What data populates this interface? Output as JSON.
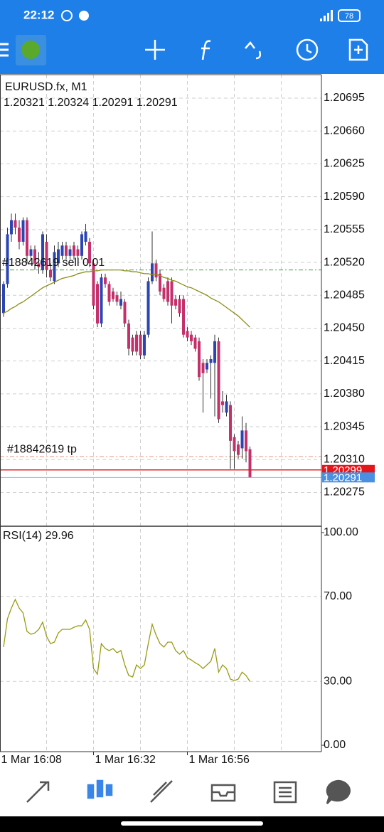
{
  "ui": {
    "status_time": "22:12",
    "battery": "78"
  },
  "chart_data": [
    {
      "type": "candlestick",
      "title": "EURUSD.fx, M1",
      "subtitle": "1.20321 1.20324 1.20291 1.20291",
      "open": [
        1.20466,
        1.20497,
        1.2055,
        1.20565,
        1.20557,
        1.20542,
        1.20565,
        1.20527,
        1.20534,
        1.20519,
        1.20512,
        1.20542,
        1.20512,
        1.205,
        1.20519,
        1.20527,
        1.20538,
        1.20527,
        1.20538,
        1.20534,
        1.20527,
        1.20542,
        1.20542,
        1.20519,
        1.20497,
        1.20455,
        1.20504,
        1.20497,
        1.20489,
        1.20485,
        1.20474,
        1.20478,
        1.20455,
        1.2044,
        1.20443,
        1.20443,
        1.20421,
        1.20443,
        1.205,
        1.20519,
        1.20508,
        1.20493,
        1.205,
        1.205,
        1.20481,
        1.20481,
        1.20481,
        1.20447,
        1.20443,
        1.2044,
        1.20436,
        1.20413,
        1.20406,
        1.20413,
        1.20413,
        1.20436,
        1.20372,
        1.2036,
        1.20368,
        1.20334,
        1.20326,
        1.20322,
        1.20341,
        1.20321
      ],
      "high": [
        1.205,
        1.20557,
        1.20572,
        1.20572,
        1.20565,
        1.20568,
        1.20568,
        1.20538,
        1.20538,
        1.20531,
        1.20553,
        1.2055,
        1.20519,
        1.20538,
        1.20542,
        1.20542,
        1.20542,
        1.20538,
        1.20542,
        1.20538,
        1.20553,
        1.20561,
        1.20546,
        1.20523,
        1.205,
        1.20508,
        1.20508,
        1.205,
        1.20493,
        1.20489,
        1.20489,
        1.20481,
        1.20459,
        1.20443,
        1.20447,
        1.20447,
        1.20447,
        1.20504,
        1.20553,
        1.20523,
        1.20512,
        1.20497,
        1.20504,
        1.20504,
        1.20485,
        1.20485,
        1.20485,
        1.20451,
        1.20447,
        1.20443,
        1.2044,
        1.20417,
        1.20417,
        1.20421,
        1.20443,
        1.2044,
        1.20383,
        1.20379,
        1.20372,
        1.20337,
        1.2033,
        1.20356,
        1.20349,
        1.20324
      ],
      "low": [
        1.20462,
        1.20493,
        1.20542,
        1.2055,
        1.20534,
        1.20538,
        1.20519,
        1.20523,
        1.20512,
        1.20508,
        1.20508,
        1.20504,
        1.205,
        1.20497,
        1.20515,
        1.20523,
        1.20523,
        1.20523,
        1.20523,
        1.20523,
        1.20523,
        1.20538,
        1.20515,
        1.2047,
        1.20451,
        1.20451,
        1.20493,
        1.20474,
        1.20478,
        1.20474,
        1.2047,
        1.20451,
        1.20421,
        1.20421,
        1.20421,
        1.20417,
        1.20417,
        1.2044,
        1.20497,
        1.205,
        1.20485,
        1.20478,
        1.20474,
        1.20455,
        1.2047,
        1.20462,
        1.2044,
        1.20436,
        1.20432,
        1.20425,
        1.20394,
        1.2036,
        1.20402,
        1.20375,
        1.20356,
        1.20349,
        1.2036,
        1.20356,
        1.203,
        1.203,
        1.20311,
        1.20311,
        1.20307,
        1.20291
      ],
      "close": [
        1.20497,
        1.2055,
        1.20565,
        1.20557,
        1.20542,
        1.20565,
        1.20527,
        1.20534,
        1.20519,
        1.20515,
        1.2055,
        1.20512,
        1.20504,
        1.20531,
        1.20534,
        1.20538,
        1.20527,
        1.20534,
        1.20527,
        1.20527,
        1.2055,
        1.20553,
        1.20519,
        1.20474,
        1.20455,
        1.20504,
        1.20497,
        1.20478,
        1.20481,
        1.20478,
        1.20481,
        1.20455,
        1.20428,
        1.20425,
        1.20425,
        1.20421,
        1.20443,
        1.205,
        1.20519,
        1.20504,
        1.20489,
        1.20481,
        1.20478,
        1.20474,
        1.20474,
        1.20466,
        1.20443,
        1.2044,
        1.20436,
        1.20428,
        1.20398,
        1.20402,
        1.20413,
        1.20417,
        1.20436,
        1.20353,
        1.20368,
        1.20372,
        1.2033,
        1.20319,
        1.20315,
        1.20341,
        1.20319,
        1.20291
      ],
      "up_color": "#2b46b4",
      "down_color": "#c5306b",
      "moving_average": {
        "color": "#8c8c18",
        "values": [
          1.20466,
          1.20468,
          1.20471,
          1.20473,
          1.20476,
          1.20478,
          1.20481,
          1.20484,
          1.20487,
          1.2049,
          1.20493,
          1.20495,
          1.20497,
          1.20499,
          1.20501,
          1.20503,
          1.20504,
          1.20505,
          1.20506,
          1.20508,
          1.20509,
          1.2051,
          1.2051,
          1.20511,
          1.20511,
          1.20512,
          1.20512,
          1.20512,
          1.20512,
          1.20512,
          1.20512,
          1.20511,
          1.20511,
          1.2051,
          1.2051,
          1.20509,
          1.20508,
          1.20508,
          1.20507,
          1.20507,
          1.20506,
          1.20504,
          1.20503,
          1.20501,
          1.205,
          1.20498,
          1.20496,
          1.20494,
          1.20493,
          1.20491,
          1.20489,
          1.20487,
          1.20485,
          1.20482,
          1.2048,
          1.20478,
          1.20475,
          1.20472,
          1.20469,
          1.20466,
          1.20463,
          1.20459,
          1.20455,
          1.20451
        ]
      },
      "ylim": [
        1.20239,
        1.2072
      ],
      "yticks": [
        1.20695,
        {
          "value": 1.2066,
          "label": "1.20660"
        },
        1.20625,
        {
          "value": 1.2059,
          "label": "1.20590"
        },
        1.20555,
        {
          "value": 1.2052,
          "label": "1.20520"
        },
        1.20485,
        {
          "value": 1.2045,
          "label": "1.20450"
        },
        1.20415,
        {
          "value": 1.2038,
          "label": "1.20380"
        },
        1.20345,
        {
          "value": 1.2031,
          "label": "1.20310"
        },
        1.20275
      ],
      "xlim": [
        -0.91,
        81.27
      ],
      "xticks": [
        {
          "value": -1,
          "label": "1 Mar 16:08"
        },
        {
          "value": 23,
          "label": "1 Mar 16:32"
        },
        {
          "value": 47,
          "label": "1 Mar 16:56"
        }
      ],
      "xgrid": [
        -1,
        11,
        23,
        35,
        47,
        59,
        71
      ],
      "grid": true,
      "orders": [
        {
          "label": "#18842619 sell 0.01",
          "price": 1.20512,
          "color": "#3f9a3f"
        },
        {
          "label": "#18842619 tp",
          "price": 1.20313,
          "color": "#e8907a"
        }
      ],
      "price_lines": [
        {
          "price": 1.20299,
          "color": "#e3161b"
        },
        {
          "price": 1.20291,
          "color": "#4a90e2"
        }
      ]
    },
    {
      "type": "line",
      "title": "RSI(14) 29.96",
      "color": "#9a9a14",
      "values": [
        46.2,
        59.5,
        64.5,
        68.6,
        64.5,
        62.2,
        53.5,
        52.2,
        52.8,
        54.5,
        57.9,
        51.2,
        47.8,
        48.5,
        52.8,
        54.5,
        54.5,
        54.5,
        55.5,
        56.2,
        56.2,
        58.9,
        54.5,
        36.1,
        33.4,
        47.8,
        45.5,
        44.5,
        45.5,
        43.5,
        44.5,
        37.8,
        32.8,
        32.1,
        37.8,
        36.1,
        37.8,
        47.8,
        56.9,
        51.8,
        47.8,
        46.2,
        48.5,
        48.5,
        44.5,
        42.8,
        44.5,
        41.1,
        40.1,
        38.8,
        37.8,
        36.1,
        37.8,
        39.5,
        45.5,
        34.4,
        37.8,
        36.1,
        31.1,
        30.4,
        31.1,
        34.4,
        32.8,
        29.96
      ],
      "ylim": [
        -3,
        103
      ],
      "yticks": [
        {
          "value": 100,
          "label": "100.00"
        },
        {
          "value": 70,
          "label": "70.00"
        },
        {
          "value": 30,
          "label": "30.00"
        },
        {
          "value": 0,
          "label": "0.00"
        }
      ],
      "grid": true
    }
  ]
}
